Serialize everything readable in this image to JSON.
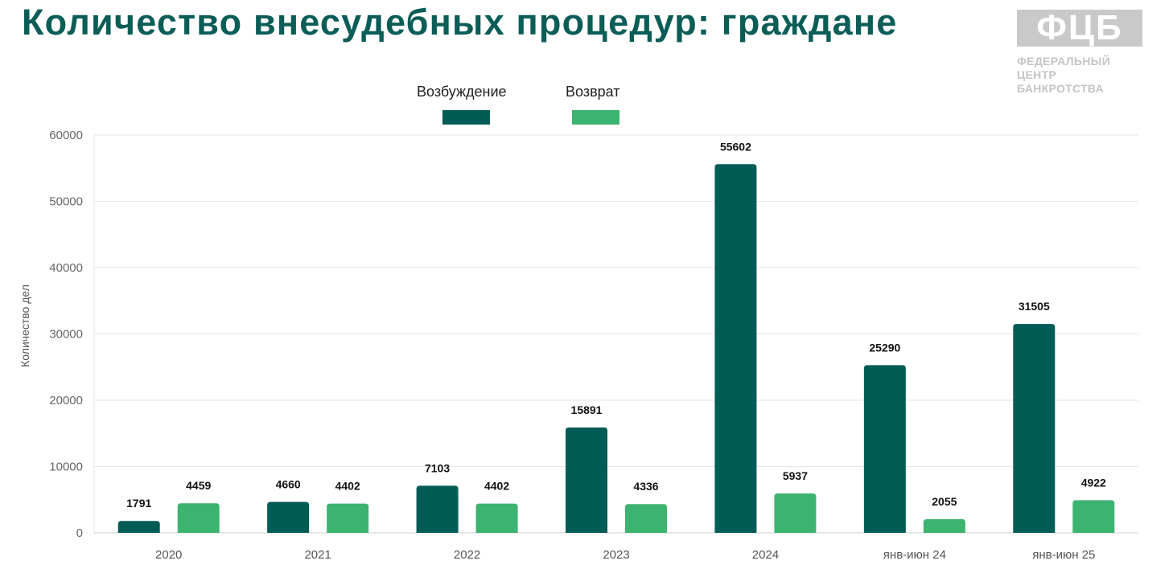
{
  "title": "Количество внесудебных процедур: граждане",
  "logo": {
    "mark": "ФЦБ",
    "lines": [
      "ФЕДЕРАЛЬНЫЙ",
      "ЦЕНТР",
      "БАНКРОТСТВА"
    ]
  },
  "chart_data": {
    "type": "bar",
    "title": "Количество внесудебных процедур: граждане",
    "xlabel": "",
    "ylabel": "Количество дел",
    "ylim": [
      0,
      60000
    ],
    "yticks": [
      0,
      10000,
      20000,
      30000,
      40000,
      50000,
      60000
    ],
    "grid": true,
    "legend_position": "top-center",
    "categories": [
      "2020",
      "2021",
      "2022",
      "2023",
      "2024",
      "янв-июн 24",
      "янв-июн 25"
    ],
    "series": [
      {
        "name": "Возбуждение",
        "color": "#005c55",
        "values": [
          1791,
          4660,
          7103,
          15891,
          55602,
          25290,
          31505
        ]
      },
      {
        "name": "Возврат",
        "color": "#3db370",
        "values": [
          4459,
          4402,
          4402,
          4336,
          5937,
          2055,
          4922
        ]
      }
    ]
  }
}
